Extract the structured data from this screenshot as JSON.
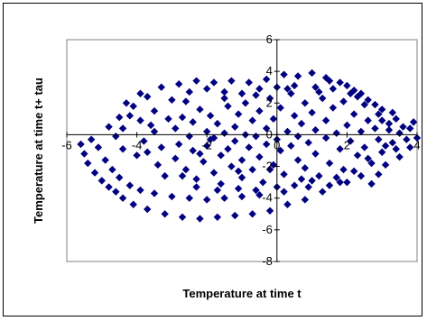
{
  "chart_data": {
    "type": "scatter",
    "xlabel": "Temperature at time t",
    "ylabel": "Temperature at time  t+ tau",
    "xlim": [
      -6,
      4
    ],
    "ylim": [
      -8,
      6
    ],
    "x_ticks": [
      -6,
      -4,
      -2,
      0,
      2,
      4
    ],
    "y_ticks": [
      -8,
      -6,
      -4,
      -2,
      0,
      2,
      4,
      6
    ],
    "x_tick_labels": [
      "-6",
      "-4",
      "-2",
      "0",
      "2",
      "4"
    ],
    "y_tick_labels": [
      "-8",
      "-6",
      "-4",
      "-2",
      "0",
      "2",
      "4",
      "6"
    ],
    "grid": false,
    "legend": "none",
    "marker": "diamond",
    "marker_color": "#000080",
    "points": [
      [
        -5.6,
        -0.6
      ],
      [
        -5.5,
        -1.2
      ],
      [
        -5.4,
        -1.8
      ],
      [
        -5.3,
        -0.3
      ],
      [
        -5.2,
        -2.4
      ],
      [
        -5.0,
        -2.9
      ],
      [
        -4.8,
        -3.3
      ],
      [
        -4.6,
        -3.6
      ],
      [
        -4.4,
        -4.0
      ],
      [
        -4.1,
        -4.4
      ],
      [
        -3.7,
        -4.7
      ],
      [
        -3.2,
        -5.0
      ],
      [
        -2.7,
        -5.2
      ],
      [
        -2.2,
        -5.3
      ],
      [
        -1.7,
        -5.2
      ],
      [
        -1.2,
        -5.1
      ],
      [
        -0.7,
        -5.0
      ],
      [
        -0.2,
        -4.8
      ],
      [
        0.3,
        -4.4
      ],
      [
        0.8,
        -4.1
      ],
      [
        1.3,
        -3.6
      ],
      [
        1.8,
        -3.0
      ],
      [
        2.2,
        -2.3
      ],
      [
        2.6,
        -1.5
      ],
      [
        -5.1,
        -0.8
      ],
      [
        -4.9,
        -1.6
      ],
      [
        -4.7,
        -2.2
      ],
      [
        -4.5,
        -2.7
      ],
      [
        -4.2,
        -3.2
      ],
      [
        -3.9,
        -3.5
      ],
      [
        -3.5,
        -3.7
      ],
      [
        -3.0,
        -3.9
      ],
      [
        -2.5,
        -4.0
      ],
      [
        -2.0,
        -4.1
      ],
      [
        -1.5,
        -4.0
      ],
      [
        -1.0,
        -3.9
      ],
      [
        -0.5,
        -3.8
      ],
      [
        0.2,
        -3.6
      ],
      [
        0.9,
        -3.3
      ],
      [
        1.5,
        -3.2
      ],
      [
        2.0,
        -3.0
      ],
      [
        2.4,
        -2.6
      ],
      [
        -4.8,
        0.5
      ],
      [
        -4.5,
        1.1
      ],
      [
        -4.1,
        1.8
      ],
      [
        -3.7,
        2.4
      ],
      [
        -3.3,
        3.0
      ],
      [
        -2.8,
        3.2
      ],
      [
        -2.3,
        3.4
      ],
      [
        -1.8,
        3.3
      ],
      [
        -1.3,
        3.4
      ],
      [
        -0.8,
        3.3
      ],
      [
        -0.3,
        3.5
      ],
      [
        0.2,
        3.8
      ],
      [
        0.6,
        3.7
      ],
      [
        1.0,
        3.9
      ],
      [
        1.4,
        3.6
      ],
      [
        1.8,
        3.3
      ],
      [
        2.2,
        2.8
      ],
      [
        2.6,
        2.2
      ],
      [
        3.0,
        1.6
      ],
      [
        3.4,
        1.0
      ],
      [
        3.8,
        0.4
      ],
      [
        4.0,
        -0.2
      ],
      [
        3.8,
        -0.8
      ],
      [
        3.5,
        -1.4
      ],
      [
        3.1,
        -1.9
      ],
      [
        2.9,
        -2.5
      ],
      [
        2.7,
        -3.1
      ],
      [
        -4.3,
        2.0
      ],
      [
        -3.9,
        2.6
      ],
      [
        -3.5,
        1.5
      ],
      [
        -3.0,
        2.2
      ],
      [
        -2.5,
        2.7
      ],
      [
        -2.0,
        2.9
      ],
      [
        -1.5,
        2.7
      ],
      [
        -1.0,
        2.6
      ],
      [
        -0.5,
        2.9
      ],
      [
        0.0,
        3.0
      ],
      [
        0.5,
        3.1
      ],
      [
        1.1,
        3.0
      ],
      [
        1.6,
        2.9
      ],
      [
        2.1,
        2.6
      ],
      [
        2.5,
        1.9
      ],
      [
        2.9,
        1.3
      ],
      [
        3.2,
        0.7
      ],
      [
        3.5,
        0.1
      ],
      [
        3.3,
        -0.5
      ],
      [
        3.0,
        -1.1
      ],
      [
        -4.6,
        -0.1
      ],
      [
        -4.4,
        -0.9
      ],
      [
        -4.0,
        -1.3
      ],
      [
        -3.8,
        -0.4
      ],
      [
        -3.6,
        0.6
      ],
      [
        -3.4,
        -1.9
      ],
      [
        -3.2,
        -2.6
      ],
      [
        -3.1,
        1.0
      ],
      [
        -2.9,
        -1.5
      ],
      [
        -2.9,
        0.4
      ],
      [
        -2.8,
        -0.6
      ],
      [
        -2.7,
        1.1
      ],
      [
        -2.6,
        -2.2
      ],
      [
        -2.5,
        -0.1
      ],
      [
        -2.4,
        -1.0
      ],
      [
        -2.4,
        0.8
      ],
      [
        -2.3,
        -2.8
      ],
      [
        -2.2,
        1.6
      ],
      [
        -2.1,
        -1.7
      ],
      [
        -2.0,
        0.2
      ],
      [
        -2.0,
        -0.7
      ],
      [
        -1.9,
        1.2
      ],
      [
        -1.8,
        -2.4
      ],
      [
        -1.8,
        -0.2
      ],
      [
        -1.7,
        0.7
      ],
      [
        -1.6,
        -1.3
      ],
      [
        -1.6,
        -3.1
      ],
      [
        -1.5,
        0.1
      ],
      [
        -1.4,
        1.8
      ],
      [
        -1.4,
        -0.9
      ],
      [
        -1.3,
        -2.0
      ],
      [
        -1.2,
        0.5
      ],
      [
        -1.2,
        -0.4
      ],
      [
        -1.1,
        1.3
      ],
      [
        -1.0,
        -1.6
      ],
      [
        -1.0,
        -2.7
      ],
      [
        -0.9,
        0.0
      ],
      [
        -0.9,
        2.0
      ],
      [
        -0.8,
        -0.8
      ],
      [
        -0.7,
        0.9
      ],
      [
        -0.7,
        -2.2
      ],
      [
        -0.6,
        -0.1
      ],
      [
        -0.5,
        1.5
      ],
      [
        -0.5,
        -1.4
      ],
      [
        -0.4,
        -3.0
      ],
      [
        -0.3,
        0.4
      ],
      [
        -0.3,
        -0.6
      ],
      [
        -0.2,
        2.3
      ],
      [
        -0.1,
        -1.9
      ],
      [
        -0.1,
        1.0
      ],
      [
        0.0,
        -0.3
      ],
      [
        0.1,
        -1.0
      ],
      [
        0.1,
        1.7
      ],
      [
        0.2,
        -2.5
      ],
      [
        0.3,
        0.2
      ],
      [
        0.4,
        -0.7
      ],
      [
        0.4,
        2.6
      ],
      [
        0.5,
        1.2
      ],
      [
        0.6,
        -1.6
      ],
      [
        0.6,
        -0.1
      ],
      [
        0.7,
        0.7
      ],
      [
        0.8,
        -2.1
      ],
      [
        0.8,
        2.0
      ],
      [
        0.9,
        -0.5
      ],
      [
        1.0,
        1.4
      ],
      [
        1.1,
        -1.2
      ],
      [
        1.1,
        0.3
      ],
      [
        1.2,
        -2.6
      ],
      [
        1.3,
        2.3
      ],
      [
        1.4,
        -0.2
      ],
      [
        1.4,
        0.9
      ],
      [
        1.5,
        -1.8
      ],
      [
        1.6,
        1.7
      ],
      [
        1.7,
        0.1
      ],
      [
        1.8,
        -0.9
      ],
      [
        1.9,
        2.1
      ],
      [
        1.9,
        -2.2
      ],
      [
        2.0,
        0.6
      ],
      [
        2.1,
        -0.4
      ],
      [
        2.2,
        1.3
      ],
      [
        2.3,
        -1.3
      ],
      [
        2.4,
        0.2
      ],
      [
        2.5,
        -0.8
      ],
      [
        2.6,
        0.9
      ],
      [
        2.7,
        -1.8
      ],
      [
        2.8,
        0.4
      ],
      [
        2.9,
        -0.3
      ],
      [
        3.0,
        0.9
      ],
      [
        3.1,
        -0.7
      ],
      [
        3.2,
        0.3
      ],
      [
        3.3,
        1.4
      ],
      [
        3.4,
        -0.9
      ],
      [
        3.6,
        0.5
      ],
      [
        3.7,
        -0.3
      ],
      [
        3.9,
        0.8
      ],
      [
        -2.6,
        2.1
      ],
      [
        -2.2,
        -1.2
      ],
      [
        -1.9,
        -0.3
      ],
      [
        -1.5,
        2.3
      ],
      [
        -1.1,
        -2.3
      ],
      [
        -0.6,
        2.5
      ],
      [
        -0.2,
        -2.2
      ],
      [
        0.3,
        2.9
      ],
      [
        0.7,
        -2.8
      ],
      [
        1.2,
        2.7
      ],
      [
        1.7,
        -2.7
      ],
      [
        2.3,
        2.4
      ],
      [
        -3.3,
        -0.8
      ],
      [
        -3.5,
        0.2
      ],
      [
        -3.7,
        -1.1
      ],
      [
        -2.7,
        -2.6
      ],
      [
        -2.3,
        -3.3
      ],
      [
        -1.7,
        -3.5
      ],
      [
        -1.1,
        -3.4
      ],
      [
        -0.6,
        -3.5
      ],
      [
        0.0,
        -3.3
      ],
      [
        0.5,
        -3.2
      ],
      [
        1.0,
        -2.9
      ],
      [
        -4.2,
        1.2
      ],
      [
        -4.4,
        0.4
      ],
      [
        -3.9,
        0.9
      ],
      [
        1.5,
        3.4
      ],
      [
        2.0,
        3.1
      ],
      [
        2.4,
        2.6
      ],
      [
        2.8,
        1.9
      ]
    ]
  }
}
